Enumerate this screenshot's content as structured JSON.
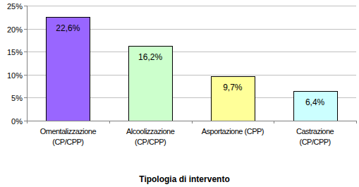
{
  "chart_data": {
    "type": "bar",
    "x_label": "Tipologia di intervento",
    "categories": [
      "Omentalizzazione\n(CP/CPP)",
      "Alcoolizzazione\n(CP/CPP)",
      "Asportazione (CPP)",
      "Castrazione\n(CP/CPP)"
    ],
    "values": [
      22.6,
      16.2,
      9.7,
      6.4
    ],
    "value_labels": [
      "22,6%",
      "16,2%",
      "9,7%",
      "6,4%"
    ],
    "colors": [
      "#9966ff",
      "#ccffcc",
      "#ffff99",
      "#ccffff"
    ],
    "ylim": [
      0,
      25
    ],
    "yticks": [
      {
        "value": 0,
        "label": "0%"
      },
      {
        "value": 5,
        "label": "5%"
      },
      {
        "value": 10,
        "label": "10%"
      },
      {
        "value": 15,
        "label": "15%"
      },
      {
        "value": 20,
        "label": "20%"
      },
      {
        "value": 25,
        "label": "25%"
      }
    ],
    "grid": true,
    "data_labels": true
  }
}
